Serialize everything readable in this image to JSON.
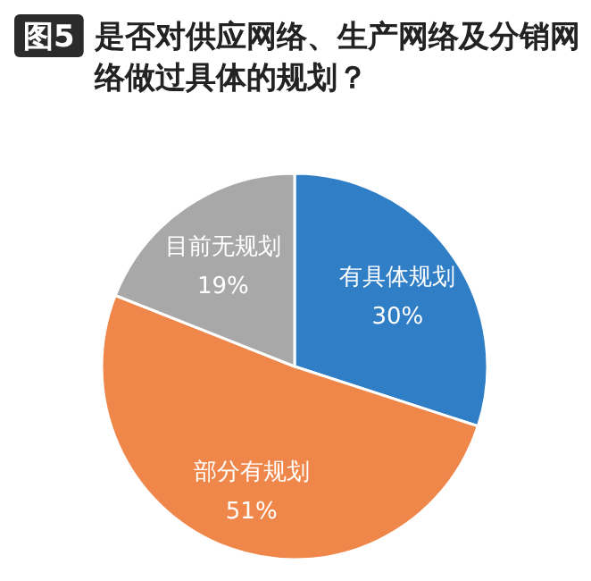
{
  "chart_data": {
    "type": "pie",
    "title": "图5 是否对供应网络、生产网络及分销网络做过具体的规划？",
    "categories": [
      "有具体规划",
      "部分有规划",
      "目前无规划"
    ],
    "values": [
      30,
      51,
      19
    ],
    "value_labels": [
      "30%",
      "51%",
      "19%"
    ],
    "colors": [
      "#2f7ec6",
      "#f0874a",
      "#a8a8a8"
    ],
    "legend": false
  }
}
